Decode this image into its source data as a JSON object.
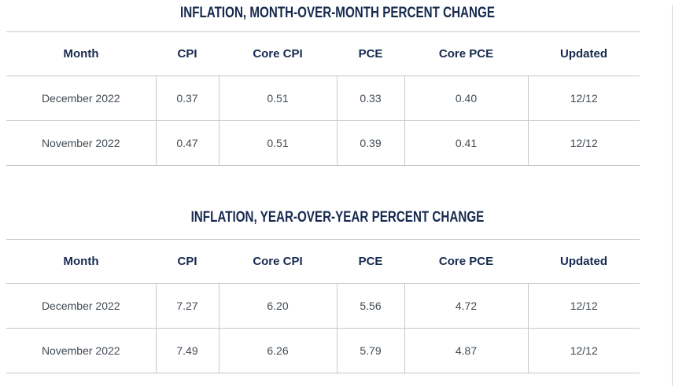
{
  "colors": {
    "title_navy": "#16294f",
    "body_text": "#414b55",
    "border_gray": "#c5c9cd",
    "page_edge_gray": "#d2d5d8",
    "background": "#ffffff"
  },
  "chart_data": [
    {
      "type": "table",
      "title": "INFLATION, MONTH-OVER-MONTH PERCENT CHANGE",
      "columns": [
        "Month",
        "CPI",
        "Core CPI",
        "PCE",
        "Core PCE",
        "Updated"
      ],
      "rows": [
        [
          "December 2022",
          "0.37",
          "0.51",
          "0.33",
          "0.40",
          "12/12"
        ],
        [
          "November 2022",
          "0.47",
          "0.51",
          "0.39",
          "0.41",
          "12/12"
        ]
      ]
    },
    {
      "type": "table",
      "title": "INFLATION, YEAR-OVER-YEAR PERCENT CHANGE",
      "columns": [
        "Month",
        "CPI",
        "Core CPI",
        "PCE",
        "Core PCE",
        "Updated"
      ],
      "rows": [
        [
          "December 2022",
          "7.27",
          "6.20",
          "5.56",
          "4.72",
          "12/12"
        ],
        [
          "November 2022",
          "7.49",
          "6.26",
          "5.79",
          "4.87",
          "12/12"
        ]
      ]
    }
  ]
}
